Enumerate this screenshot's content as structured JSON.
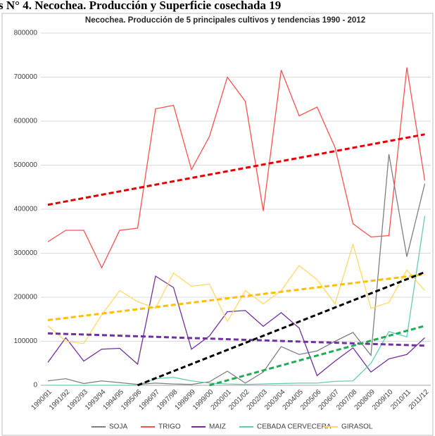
{
  "page_heading": "s N° 4. Necochea. Producción y Superficie cosechada 19",
  "chart_data": {
    "type": "line",
    "title": "Necochea. Producción  de 5 principales cultivos y tendencias 1990 - 2012",
    "categories": [
      "1990/91",
      "1991/92",
      "1992/93",
      "1993/94",
      "1994/95",
      "1995/96",
      "1996/97",
      "1997/98",
      "1998/99",
      "1999/00",
      "2000/01",
      "2001/02",
      "2002/03",
      "2003/04",
      "2004/05",
      "2005/06",
      "2006/07",
      "2007/08",
      "2008/09",
      "2009/10",
      "2010/11",
      "2011/12"
    ],
    "ylim": [
      0,
      800000
    ],
    "yticks": [
      0,
      100000,
      200000,
      300000,
      400000,
      500000,
      600000,
      700000,
      800000
    ],
    "grid": true,
    "legend": "bottom",
    "series": [
      {
        "name": "SOJA",
        "color": "#7f7f7f",
        "values": [
          10000,
          15000,
          4000,
          10000,
          6000,
          2000,
          5000,
          3000,
          2000,
          8000,
          32000,
          5000,
          30000,
          88000,
          70000,
          78000,
          100000,
          120000,
          68000,
          525000,
          292000,
          458000
        ]
      },
      {
        "name": "TRIGO",
        "color": "#ff5050",
        "values": [
          326000,
          352000,
          352000,
          267000,
          352000,
          357000,
          628000,
          636000,
          490000,
          565000,
          700000,
          645000,
          396000,
          716000,
          612000,
          632000,
          540000,
          367000,
          337000,
          340000,
          722000,
          465000
        ]
      },
      {
        "name": "MAIZ",
        "color": "#7030a0",
        "values": [
          52000,
          108000,
          55000,
          82000,
          84000,
          48000,
          248000,
          222000,
          82000,
          112000,
          167000,
          170000,
          134000,
          165000,
          130000,
          22000,
          55000,
          85000,
          30000,
          60000,
          70000,
          108000
        ]
      },
      {
        "name": "CEBADA CERVECERA",
        "color": "#66ccb0",
        "values": [
          0,
          0,
          0,
          0,
          0,
          0,
          15000,
          18000,
          10000,
          5000,
          3000,
          2000,
          3000,
          4000,
          5000,
          5000,
          9000,
          10000,
          50000,
          122000,
          110000,
          385000
        ]
      },
      {
        "name": "GIRASOL",
        "color": "#ffd966",
        "values": [
          135000,
          100000,
          95000,
          160000,
          215000,
          190000,
          175000,
          255000,
          225000,
          230000,
          145000,
          215000,
          185000,
          215000,
          272000,
          240000,
          185000,
          320000,
          175000,
          188000,
          262000,
          215000
        ]
      }
    ],
    "trendlines": [
      {
        "color": "#e00000",
        "x": [
          "1990/91",
          "2011/12"
        ],
        "values": [
          410000,
          570000
        ]
      },
      {
        "color": "#7030a0",
        "x": [
          "1990/91",
          "2011/12"
        ],
        "values": [
          118000,
          90000
        ]
      },
      {
        "color": "#ffc000",
        "x": [
          "1990/91",
          "2011/12"
        ],
        "values": [
          148000,
          252000
        ]
      },
      {
        "color": "#000000",
        "x": [
          "1995/96",
          "2011/12"
        ],
        "values": [
          0,
          257000
        ]
      },
      {
        "color": "#22aa55",
        "x": [
          "1999/00",
          "2011/12"
        ],
        "values": [
          0,
          135000
        ]
      }
    ]
  }
}
